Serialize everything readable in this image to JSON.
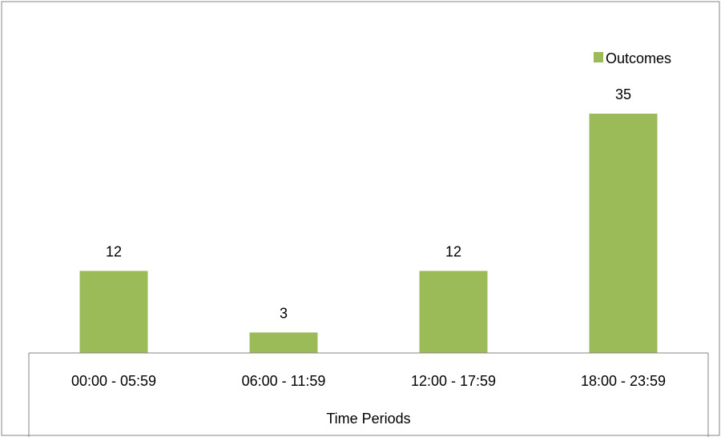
{
  "chart_data": {
    "type": "bar",
    "categories": [
      "00:00 - 05:59",
      "06:00 - 11:59",
      "12:00 - 17:59",
      "18:00 - 23:59"
    ],
    "series": [
      {
        "name": "Outcomes",
        "values": [
          12,
          3,
          12,
          35
        ],
        "color": "#9BBB59"
      }
    ],
    "data_labels": [
      "12",
      "3",
      "12",
      "35"
    ],
    "title": "",
    "xlabel": "Time Periods",
    "ylabel": "",
    "ylim": [
      0,
      35
    ],
    "grid": false,
    "legend": {
      "position": "top-right",
      "entries": [
        "Outcomes"
      ]
    }
  }
}
